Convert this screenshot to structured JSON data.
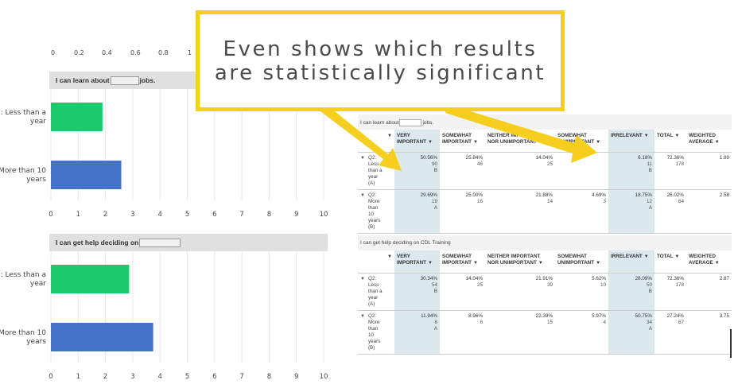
{
  "callout": {
    "line1": "Even shows which results",
    "line2": "are statistically significant",
    "border_color": "#f5ce1e"
  },
  "top_axis_partial": [
    "0",
    "0.2",
    "0.4",
    "0.6",
    "0.8",
    "1"
  ],
  "chart_data": [
    {
      "type": "bar",
      "orientation": "horizontal",
      "title_prefix": "I can learn about",
      "title_suffix": "jobs.",
      "categories": [
        "Q2: Less than a year",
        "Q2: More than 10 years"
      ],
      "values": [
        1.89,
        2.58
      ],
      "colors": [
        "#1ec96e",
        "#4472c4"
      ],
      "xlim": [
        0,
        10
      ],
      "xticks": [
        "0",
        "1",
        "2",
        "3",
        "4",
        "5",
        "6",
        "7",
        "8",
        "9",
        "10"
      ],
      "grid": true
    },
    {
      "type": "bar",
      "orientation": "horizontal",
      "title_prefix": "I can get help deciding on",
      "title_suffix": "",
      "categories": [
        "Q2: Less than a year",
        "Q2: More than 10 years"
      ],
      "values": [
        2.87,
        3.75
      ],
      "colors": [
        "#1ec96e",
        "#4472c4"
      ],
      "xlim": [
        0,
        10
      ],
      "xticks": [
        "0",
        "1",
        "2",
        "3",
        "4",
        "5",
        "6",
        "7",
        "8",
        "9",
        "10"
      ],
      "grid": true
    },
    {
      "type": "table",
      "caption_prefix": "I can learn about",
      "caption_suffix": "jobs.",
      "columns": [
        "VERY IMPORTANT",
        "SOMEWHAT IMPORTANT",
        "NEITHER IMPORTANT NOR UNIMPORTANT",
        "SOMEWHAT UNIMPORTANT",
        "IRRELEVANT",
        "TOTAL",
        "WEIGHTED AVERAGE"
      ],
      "rows": [
        {
          "label": "Q2: Less than a year (A)",
          "cells": [
            {
              "pct": "50.56%",
              "n": "90",
              "sig": "B"
            },
            {
              "pct": "25.84%",
              "n": "46",
              "sig": ""
            },
            {
              "pct": "14.04%",
              "n": "25",
              "sig": ""
            },
            {
              "pct": "",
              "n": "",
              "sig": ""
            },
            {
              "pct": "6.18%",
              "n": "11",
              "sig": "B"
            },
            {
              "pct": "72.36%",
              "n": "178",
              "sig": ""
            },
            {
              "pct": "1.89",
              "n": "",
              "sig": ""
            }
          ]
        },
        {
          "label": "Q2: More than 10 years (B)",
          "cells": [
            {
              "pct": "29.69%",
              "n": "19",
              "sig": "A"
            },
            {
              "pct": "25.00%",
              "n": "16",
              "sig": ""
            },
            {
              "pct": "21.88%",
              "n": "14",
              "sig": ""
            },
            {
              "pct": "4.69%",
              "n": "3",
              "sig": ""
            },
            {
              "pct": "18.75%",
              "n": "12",
              "sig": "A"
            },
            {
              "pct": "26.02%",
              "n": "64",
              "sig": ""
            },
            {
              "pct": "2.58",
              "n": "",
              "sig": ""
            }
          ]
        }
      ]
    },
    {
      "type": "table",
      "caption_prefix": "I can get help deciding on CDL Training",
      "caption_suffix": "",
      "columns": [
        "VERY IMPORTANT",
        "SOMEWHAT IMPORTANT",
        "NEITHER IMPORTANT NOR UNIMPORTANT",
        "SOMEWHAT UNIMPORTANT",
        "IRRELEVANT",
        "TOTAL",
        "WEIGHTED AVERAGE"
      ],
      "rows": [
        {
          "label": "Q2: Less than a year (A)",
          "cells": [
            {
              "pct": "30.34%",
              "n": "54",
              "sig": "B"
            },
            {
              "pct": "14.04%",
              "n": "25",
              "sig": ""
            },
            {
              "pct": "21.91%",
              "n": "39",
              "sig": ""
            },
            {
              "pct": "5.62%",
              "n": "10",
              "sig": ""
            },
            {
              "pct": "28.09%",
              "n": "50",
              "sig": "B"
            },
            {
              "pct": "72.36%",
              "n": "178",
              "sig": ""
            },
            {
              "pct": "2.87",
              "n": "",
              "sig": ""
            }
          ]
        },
        {
          "label": "Q2: More than 10 years (B)",
          "cells": [
            {
              "pct": "11.94%",
              "n": "8",
              "sig": "A"
            },
            {
              "pct": "8.96%",
              "n": "6",
              "sig": ""
            },
            {
              "pct": "22.39%",
              "n": "15",
              "sig": ""
            },
            {
              "pct": "5.97%",
              "n": "4",
              "sig": ""
            },
            {
              "pct": "50.75%",
              "n": "34",
              "sig": "A"
            },
            {
              "pct": "27.24%",
              "n": "67",
              "sig": ""
            },
            {
              "pct": "3.75",
              "n": "",
              "sig": ""
            }
          ]
        }
      ]
    }
  ],
  "colors": {
    "highlight": "#dbe9ef",
    "arrow": "#f5ce1e",
    "header_bg": "#e0e0e0"
  }
}
